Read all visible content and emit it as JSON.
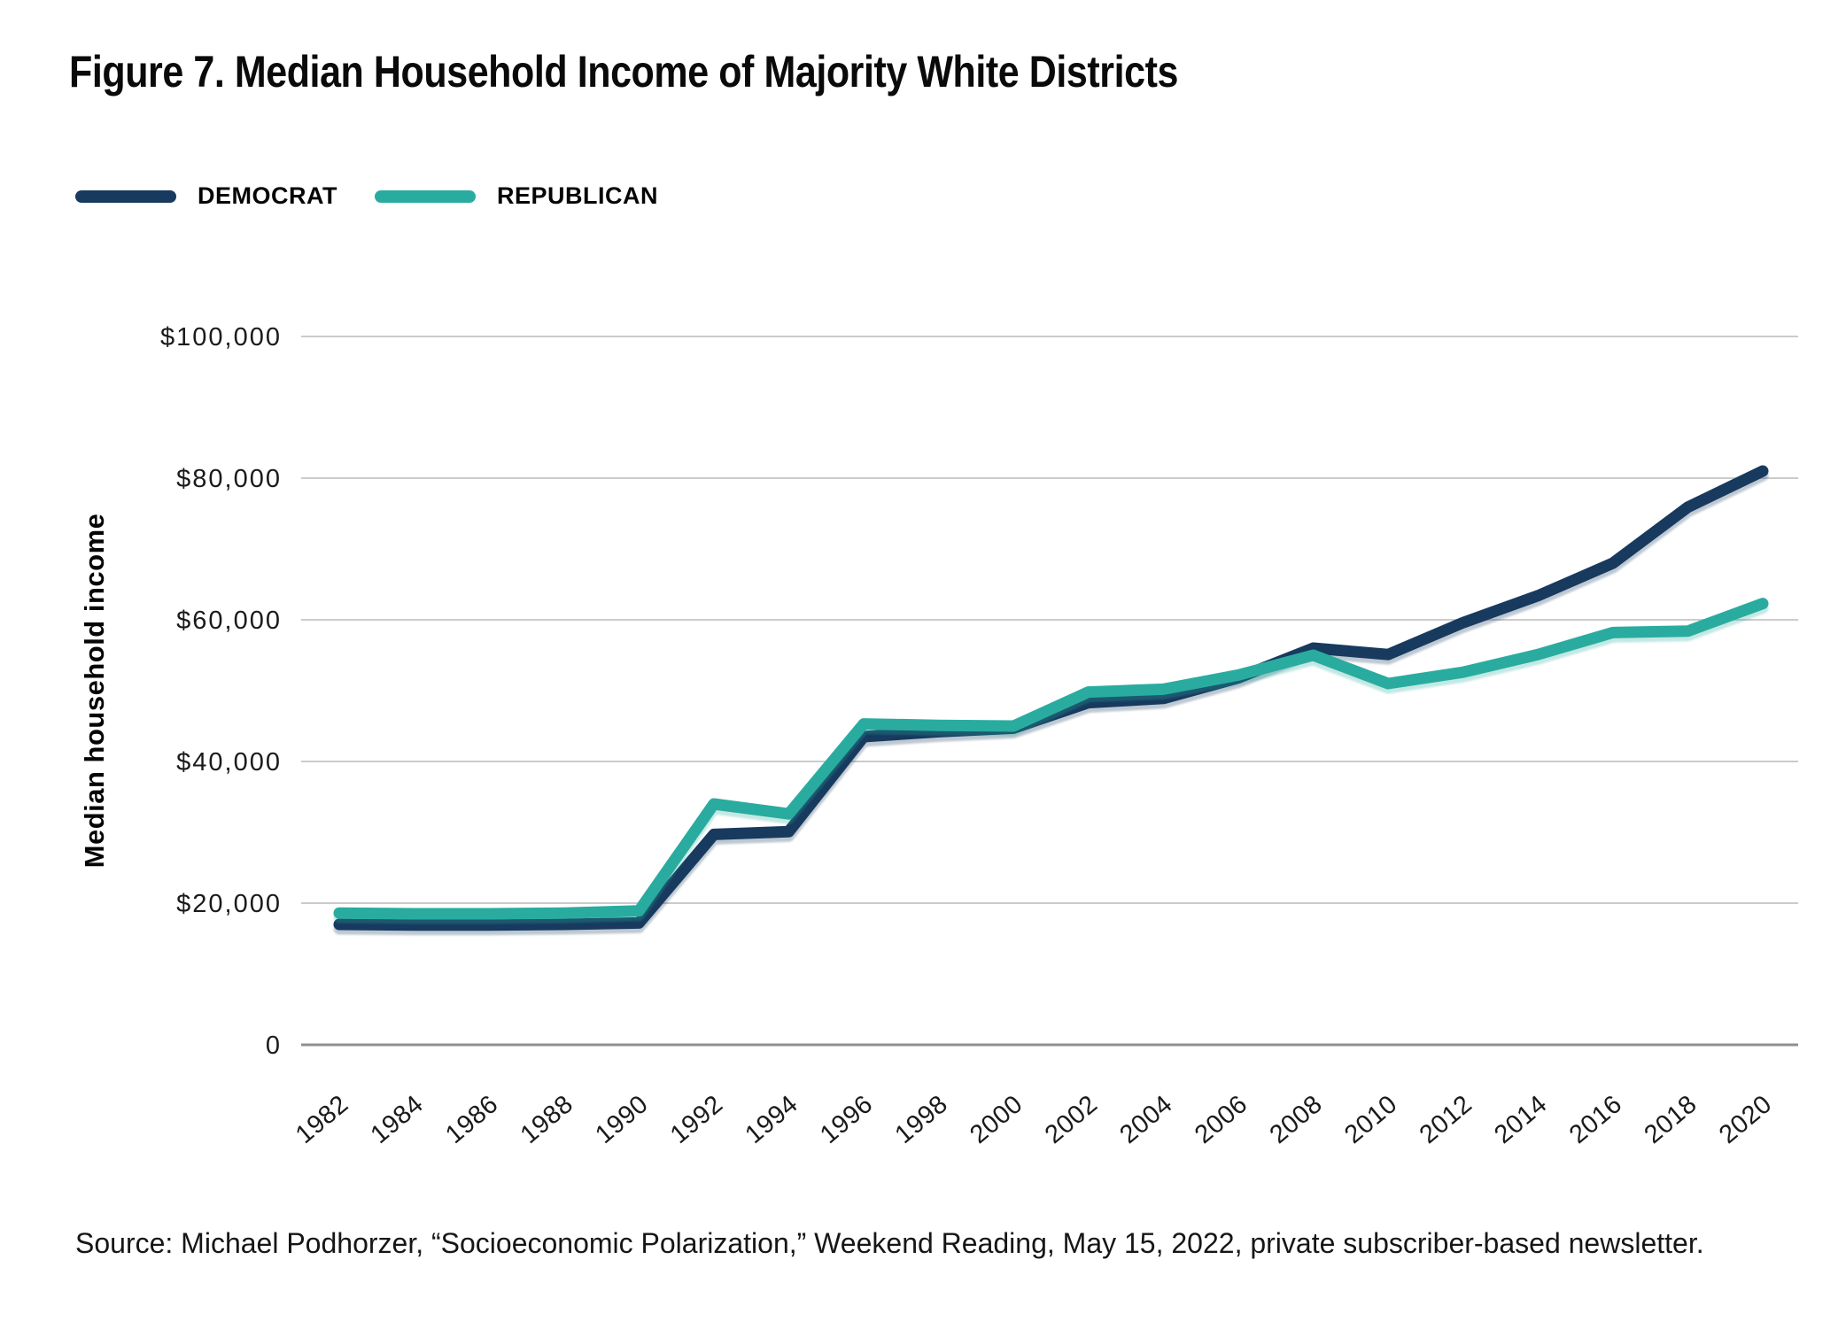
{
  "header": {
    "title": "Figure 7. Median Household Income of Majority White Districts"
  },
  "legend": {
    "items": [
      {
        "label": "DEMOCRAT",
        "color": "#173A5E"
      },
      {
        "label": "REPUBLICAN",
        "color": "#29AC9F"
      }
    ]
  },
  "chart_data": {
    "type": "line",
    "title": "Figure 7. Median Household Income of Majority White Districts",
    "xlabel": "",
    "ylabel": "Median household income",
    "x": [
      1982,
      1984,
      1986,
      1988,
      1990,
      1992,
      1994,
      1996,
      1998,
      2000,
      2002,
      2004,
      2006,
      2008,
      2010,
      2012,
      2014,
      2016,
      2018,
      2020
    ],
    "series": [
      {
        "name": "DEMOCRAT",
        "color": "#173A5E",
        "values": [
          17000,
          16900,
          16900,
          17000,
          17200,
          29700,
          30100,
          43500,
          44200,
          44700,
          48300,
          48900,
          51800,
          56000,
          55100,
          59600,
          63400,
          68000,
          75900,
          81000
        ]
      },
      {
        "name": "REPUBLICAN",
        "color": "#29AC9F",
        "values": [
          18600,
          18500,
          18500,
          18600,
          18900,
          34000,
          32600,
          45300,
          45100,
          45000,
          49800,
          50200,
          52200,
          55000,
          51000,
          52600,
          55100,
          58200,
          58400,
          62300
        ]
      }
    ],
    "ylim": [
      0,
      100000
    ],
    "yticks": [
      0,
      20000,
      40000,
      60000,
      80000,
      100000
    ],
    "ytick_labels": [
      "0",
      "$20,000",
      "$40,000",
      "$60,000",
      "$80,000",
      "$100,000"
    ],
    "grid": "horizontal",
    "legend_position": "top-left"
  },
  "colors": {
    "gridline": "#CBCBCB",
    "zero_axis": "#8F8F8F",
    "tick_text": "#1A1A1A"
  },
  "source": {
    "text": "Source: Michael Podhorzer, “Socioeconomic Polarization,” Weekend Reading, May 15, 2022, private subscriber-based newsletter."
  }
}
